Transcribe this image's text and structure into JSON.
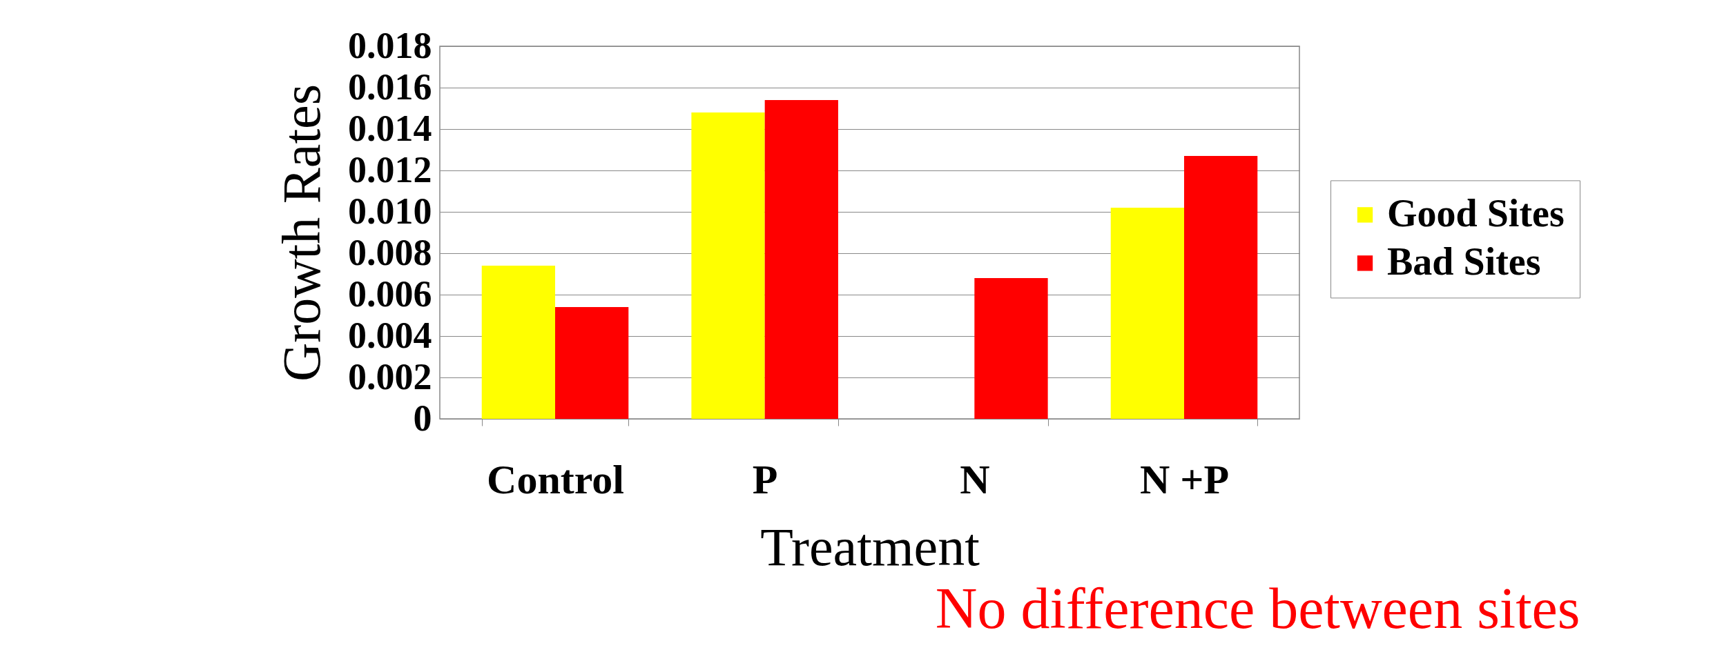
{
  "chart_data": {
    "type": "bar",
    "xlabel": "Treatment",
    "ylabel": "Growth Rates",
    "categories": [
      "Control",
      "P",
      "N",
      "N +P"
    ],
    "series": [
      {
        "name": "Good Sites",
        "color": "#ffff00",
        "values": [
          0.0074,
          0.0148,
          0,
          0.0102
        ]
      },
      {
        "name": "Bad Sites",
        "color": "#ff0000",
        "values": [
          0.0054,
          0.0154,
          0.0068,
          0.0127
        ]
      }
    ],
    "ylim": [
      0,
      0.018
    ],
    "yticks": [
      0,
      0.002,
      0.004,
      0.006,
      0.008,
      {
        "value": 0.01,
        "label": "0.010"
      },
      0.012,
      0.014,
      0.016,
      0.018
    ],
    "grid": "y",
    "legend": "right",
    "annotations": [
      "No difference between sites"
    ]
  }
}
